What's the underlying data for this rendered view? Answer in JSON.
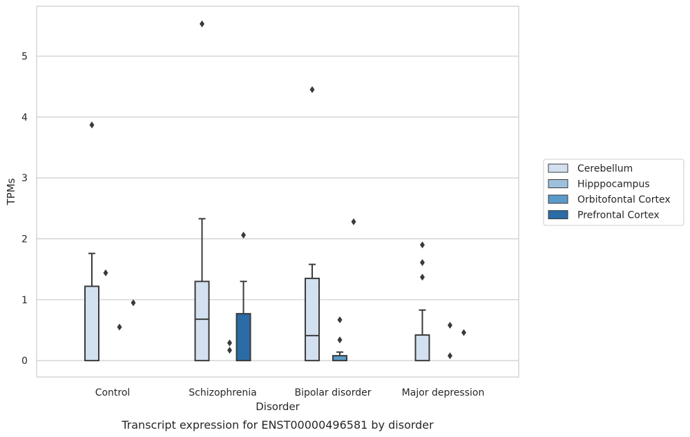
{
  "chart_data": {
    "type": "box",
    "caption": "Transcript expression for ENST00000496581 by disorder",
    "xlabel": "Disorder",
    "ylabel": "TPMs",
    "ylim": [
      -0.27,
      5.82
    ],
    "yticks": [
      0,
      1,
      2,
      3,
      4,
      5
    ],
    "grid": "horizontal",
    "legend_position": "right",
    "categories": [
      "Control",
      "Schizophrenia",
      "Bipolar disorder",
      "Major depression"
    ],
    "series": [
      {
        "name": "Cerebellum",
        "color": "#d2e0f0",
        "boxes": [
          {
            "q1": 0,
            "median": 0,
            "q3": 1.22,
            "whisker_low": 0,
            "whisker_high": 1.76,
            "outliers": [
              3.87
            ]
          },
          {
            "q1": 0,
            "median": 0.68,
            "q3": 1.3,
            "whisker_low": 0,
            "whisker_high": 2.33,
            "outliers": [
              5.53
            ]
          },
          {
            "q1": 0,
            "median": 0.41,
            "q3": 1.35,
            "whisker_low": 0,
            "whisker_high": 1.58,
            "outliers": [
              4.45
            ]
          },
          {
            "q1": 0,
            "median": 0,
            "q3": 0.42,
            "whisker_low": 0,
            "whisker_high": 0.83,
            "outliers": [
              1.37,
              1.61,
              1.9
            ]
          }
        ]
      },
      {
        "name": "Hipppocampus",
        "color": "#9dc1dd",
        "boxes": [
          {
            "q1": 0,
            "median": 0,
            "q3": 0,
            "whisker_low": 0,
            "whisker_high": 0,
            "outliers": [
              1.44
            ]
          },
          {
            "q1": 0,
            "median": 0,
            "q3": 0,
            "whisker_low": 0,
            "whisker_high": 0,
            "outliers": []
          },
          {
            "q1": 0,
            "median": 0,
            "q3": 0,
            "whisker_low": 0,
            "whisker_high": 0,
            "outliers": []
          },
          {
            "q1": 0,
            "median": 0,
            "q3": 0,
            "whisker_low": 0,
            "whisker_high": 0,
            "outliers": []
          }
        ]
      },
      {
        "name": "Orbitofontal Cortex",
        "color": "#5b9bc9",
        "boxes": [
          {
            "q1": 0,
            "median": 0,
            "q3": 0,
            "whisker_low": 0,
            "whisker_high": 0,
            "outliers": [
              0.55
            ]
          },
          {
            "q1": 0,
            "median": 0,
            "q3": 0,
            "whisker_low": 0,
            "whisker_high": 0,
            "outliers": [
              0.17,
              0.29
            ]
          },
          {
            "q1": 0,
            "median": 0,
            "q3": 0.08,
            "whisker_low": 0,
            "whisker_high": 0.14,
            "outliers": [
              0.34,
              0.67
            ]
          },
          {
            "q1": 0,
            "median": 0,
            "q3": 0,
            "whisker_low": 0,
            "whisker_high": 0,
            "outliers": [
              0.08,
              0.58
            ]
          }
        ]
      },
      {
        "name": "Prefrontal Cortex",
        "color": "#2b6ba6",
        "boxes": [
          {
            "q1": 0,
            "median": 0,
            "q3": 0,
            "whisker_low": 0,
            "whisker_high": 0,
            "outliers": [
              0.95
            ]
          },
          {
            "q1": 0,
            "median": 0,
            "q3": 0.77,
            "whisker_low": 0,
            "whisker_high": 1.3,
            "outliers": [
              2.06
            ]
          },
          {
            "q1": 0,
            "median": 0,
            "q3": 0,
            "whisker_low": 0,
            "whisker_high": 0,
            "outliers": [
              2.28
            ]
          },
          {
            "q1": 0,
            "median": 0,
            "q3": 0,
            "whisker_low": 0,
            "whisker_high": 0,
            "outliers": [
              0.46
            ]
          }
        ]
      }
    ]
  }
}
